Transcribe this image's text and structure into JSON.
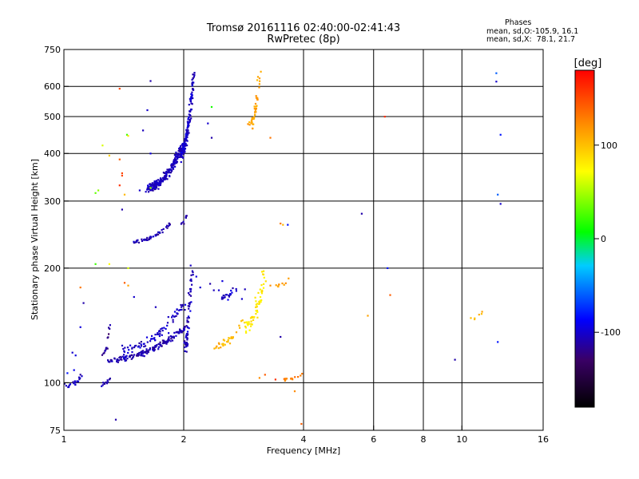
{
  "header": {
    "title_line1": "Tromsø 20161116 02:40:00-02:41:43",
    "title_line2": "RwPretec (8p)"
  },
  "phase_stats": {
    "title": "Phases",
    "o_line": "mean, sd,O:-105.9, 16.1",
    "x_line": "mean, sd,X:  78.1, 21.7"
  },
  "colorbar": {
    "unit_label": "[deg]",
    "range": [
      -180,
      180
    ],
    "ticks": [
      {
        "value": 100,
        "label": "100"
      },
      {
        "value": 0,
        "label": "0"
      },
      {
        "value": -100,
        "label": "-100"
      }
    ]
  },
  "chart_data": {
    "type": "scatter",
    "xlabel": "Frequency [MHz]",
    "ylabel": "Stationary phase Virtual Height [km]",
    "x_scale": "log",
    "y_scale": "log",
    "xlim": [
      1,
      16
    ],
    "ylim": [
      75,
      750
    ],
    "grid": true,
    "x_ticks": [
      {
        "value": 1,
        "label": "1"
      },
      {
        "value": 2,
        "label": "2"
      },
      {
        "value": 4,
        "label": "4"
      },
      {
        "value": 6,
        "label": "6"
      },
      {
        "value": 8,
        "label": "8"
      },
      {
        "value": 10,
        "label": "10"
      },
      {
        "value": 16,
        "label": "16"
      }
    ],
    "x_gridlines": [
      2,
      4,
      6,
      8,
      10
    ],
    "y_ticks": [
      {
        "value": 75,
        "label": "75"
      },
      {
        "value": 100,
        "label": "100"
      },
      {
        "value": 200,
        "label": "200"
      },
      {
        "value": 300,
        "label": "300"
      },
      {
        "value": 400,
        "label": "400"
      },
      {
        "value": 500,
        "label": "500"
      },
      {
        "value": 600,
        "label": "600"
      },
      {
        "value": 750,
        "label": "750"
      }
    ],
    "y_gridlines": [
      100,
      200,
      300,
      400,
      500,
      600
    ],
    "clusters": [
      {
        "f0": 1.0,
        "f1": 1.12,
        "h0": 98,
        "h1": 105,
        "n": 22,
        "phase": -105,
        "sf": 0.01,
        "sh": 3
      },
      {
        "f0": 1.24,
        "f1": 1.3,
        "h0": 99,
        "h1": 102,
        "n": 12,
        "phase": -110,
        "sf": 0.01,
        "sh": 1.5
      },
      {
        "f0": 1.3,
        "f1": 2.02,
        "h0": 115,
        "h1": 140,
        "n": 170,
        "phase": -108,
        "sf": 0.015,
        "sh": 3
      },
      {
        "f0": 1.4,
        "f1": 2.0,
        "h0": 122,
        "h1": 162,
        "n": 80,
        "phase": -103,
        "sf": 0.03,
        "sh": 6
      },
      {
        "f0": 2.0,
        "f1": 2.1,
        "h0": 125,
        "h1": 205,
        "n": 60,
        "phase": -105,
        "sf": 0.015,
        "sh": 10
      },
      {
        "f0": 1.25,
        "f1": 1.3,
        "h0": 118,
        "h1": 140,
        "n": 15,
        "phase": -115,
        "sf": 0.01,
        "sh": 4
      },
      {
        "f0": 1.5,
        "f1": 1.85,
        "h0": 235,
        "h1": 262,
        "n": 50,
        "phase": -108,
        "sf": 0.01,
        "sh": 3
      },
      {
        "f0": 1.98,
        "f1": 2.04,
        "h0": 262,
        "h1": 275,
        "n": 8,
        "phase": -110,
        "sf": 0.01,
        "sh": 3
      },
      {
        "f0": 1.62,
        "f1": 1.98,
        "h0": 325,
        "h1": 420,
        "n": 220,
        "phase": -105,
        "sf": 0.015,
        "sh": 12
      },
      {
        "f0": 1.96,
        "f1": 2.12,
        "h0": 400,
        "h1": 650,
        "n": 190,
        "phase": -103,
        "sf": 0.012,
        "sh": 25
      },
      {
        "f0": 2.5,
        "f1": 2.75,
        "h0": 168,
        "h1": 182,
        "n": 20,
        "phase": -100,
        "sf": 0.02,
        "sh": 5
      },
      {
        "f0": 2.4,
        "f1": 2.8,
        "h0": 125,
        "h1": 145,
        "n": 30,
        "phase": 100,
        "sf": 0.02,
        "sh": 4
      },
      {
        "f0": 2.85,
        "f1": 3.2,
        "h0": 140,
        "h1": 195,
        "n": 60,
        "phase": 80,
        "sf": 0.02,
        "sh": 10
      },
      {
        "f0": 2.95,
        "f1": 3.1,
        "h0": 480,
        "h1": 640,
        "n": 45,
        "phase": 110,
        "sf": 0.015,
        "sh": 30
      },
      {
        "f0": 3.4,
        "f1": 3.75,
        "h0": 180,
        "h1": 190,
        "n": 10,
        "phase": 110,
        "sf": 0.03,
        "sh": 4
      },
      {
        "f0": 3.55,
        "f1": 3.95,
        "h0": 102,
        "h1": 105,
        "n": 15,
        "phase": 130,
        "sf": 0.02,
        "sh": 1.5
      },
      {
        "f0": 10.5,
        "f1": 11.4,
        "h0": 148,
        "h1": 155,
        "n": 6,
        "phase": 100,
        "sf": 0.02,
        "sh": 3
      }
    ],
    "points": [
      [
        1.05,
        120,
        -100
      ],
      [
        1.07,
        118,
        -95
      ],
      [
        1.06,
        108,
        -90
      ],
      [
        1.02,
        106,
        -80
      ],
      [
        1.12,
        162,
        -110
      ],
      [
        1.1,
        140,
        -95
      ],
      [
        1.1,
        178,
        130
      ],
      [
        1.3,
        205,
        70
      ],
      [
        1.2,
        205,
        20
      ],
      [
        1.22,
        320,
        40
      ],
      [
        1.25,
        420,
        60
      ],
      [
        1.3,
        395,
        90
      ],
      [
        1.2,
        315,
        30
      ],
      [
        1.38,
        592,
        150
      ],
      [
        1.4,
        285,
        -110
      ],
      [
        1.38,
        330,
        160
      ],
      [
        1.42,
        312,
        100
      ],
      [
        1.38,
        386,
        140
      ],
      [
        1.4,
        355,
        150
      ],
      [
        1.42,
        183,
        140
      ],
      [
        1.45,
        180,
        110
      ],
      [
        1.5,
        168,
        -100
      ],
      [
        1.45,
        200,
        60
      ],
      [
        1.65,
        620,
        -110
      ],
      [
        1.62,
        520,
        -100
      ],
      [
        1.58,
        460,
        -105
      ],
      [
        1.65,
        400,
        -95
      ],
      [
        1.55,
        320,
        -100
      ],
      [
        1.35,
        80,
        -110
      ],
      [
        1.4,
        350,
        150
      ],
      [
        1.44,
        448,
        20
      ],
      [
        2.1,
        540,
        -110
      ],
      [
        2.35,
        530,
        10
      ],
      [
        2.3,
        480,
        -100
      ],
      [
        2.35,
        440,
        -110
      ],
      [
        2.33,
        182,
        -110
      ],
      [
        2.38,
        175,
        -105
      ],
      [
        1.65,
        325,
        40
      ],
      [
        1.45,
        445,
        80
      ],
      [
        2.45,
        175,
        -100
      ],
      [
        2.5,
        185,
        -95
      ],
      [
        2.9,
        478,
        120
      ],
      [
        3.3,
        440,
        130
      ],
      [
        3.3,
        180,
        120
      ],
      [
        3.5,
        262,
        130
      ],
      [
        3.55,
        260,
        100
      ],
      [
        3.65,
        260,
        -80
      ],
      [
        3.4,
        102,
        160
      ],
      [
        3.5,
        132,
        -110
      ],
      [
        3.95,
        78,
        140
      ],
      [
        3.8,
        95,
        120
      ],
      [
        3.2,
        105,
        140
      ],
      [
        3.1,
        103,
        120
      ],
      [
        5.6,
        278,
        -110
      ],
      [
        5.8,
        150,
        110
      ],
      [
        6.4,
        500,
        160
      ],
      [
        6.5,
        200,
        -80
      ],
      [
        6.6,
        170,
        140
      ],
      [
        9.6,
        115,
        -110
      ],
      [
        12.2,
        650,
        -60
      ],
      [
        12.2,
        618,
        -100
      ],
      [
        12.5,
        448,
        -80
      ],
      [
        12.3,
        312,
        -60
      ],
      [
        12.5,
        295,
        -100
      ],
      [
        12.3,
        128,
        -80
      ],
      [
        2.85,
        176,
        -105
      ],
      [
        2.8,
        166,
        -100
      ],
      [
        2.15,
        190,
        -95
      ],
      [
        2.2,
        178,
        -100
      ],
      [
        1.7,
        158,
        -105
      ]
    ]
  }
}
